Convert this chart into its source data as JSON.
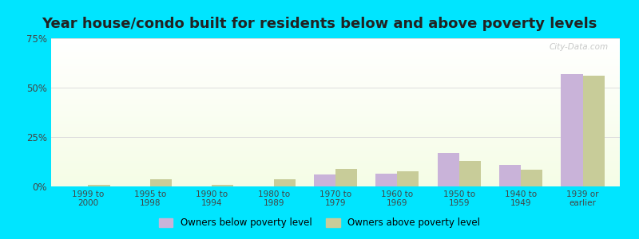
{
  "title": "Year house/condo built for residents below and above poverty levels",
  "categories": [
    "1999 to\n2000",
    "1995 to\n1998",
    "1990 to\n1994",
    "1980 to\n1989",
    "1970 to\n1979",
    "1960 to\n1969",
    "1950 to\n1959",
    "1940 to\n1949",
    "1939 or\nearlier"
  ],
  "below_poverty": [
    0.0,
    0.0,
    0.0,
    0.0,
    6.0,
    6.5,
    17.0,
    11.0,
    57.0
  ],
  "above_poverty": [
    1.0,
    3.5,
    1.0,
    3.5,
    9.0,
    7.5,
    13.0,
    8.5,
    56.0
  ],
  "below_color": "#c9b3d9",
  "above_color": "#c8cc99",
  "ylim": [
    0,
    75
  ],
  "yticks": [
    0,
    25,
    50,
    75
  ],
  "ytick_labels": [
    "0%",
    "25%",
    "50%",
    "75%"
  ],
  "background_outer": "#00e5ff",
  "title_fontsize": 13,
  "legend_below": "Owners below poverty level",
  "legend_above": "Owners above poverty level",
  "bar_width": 0.35,
  "grid_color": "#dddddd",
  "watermark": "City-Data.com"
}
